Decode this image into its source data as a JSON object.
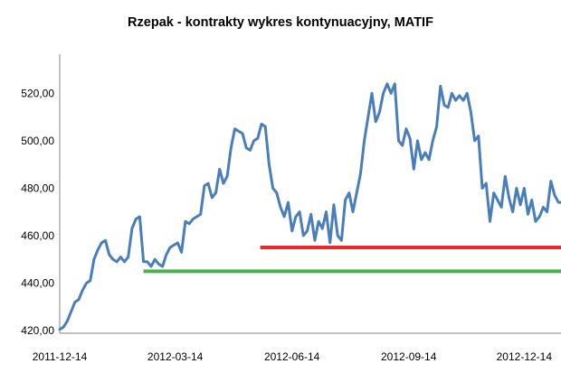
{
  "chart_data": {
    "type": "line",
    "title": "Rzepak - kontrakty wykres kontynuacyjny, MATIF",
    "xlabel": "",
    "ylabel": "",
    "ylim": [
      420,
      530
    ],
    "yticks": [
      420,
      440,
      460,
      480,
      500,
      520
    ],
    "ytick_labels": [
      "420,00",
      "440,00",
      "460,00",
      "480,00",
      "500,00",
      "520,00"
    ],
    "x_range": [
      "2011-12-14",
      "2013-01-12"
    ],
    "xtick_values": [
      "2011-12-14",
      "2012-03-14",
      "2012-06-14",
      "2012-09-14",
      "2012-12-14"
    ],
    "xtick_labels": [
      "2011-12-14",
      "2012-03-14",
      "2012-06-14",
      "2012-09-14",
      "2012-12-14"
    ],
    "grid": {
      "horizontal": false,
      "vertical": false
    },
    "series_color": "#4a7ebb",
    "series": [
      {
        "name": "",
        "points": [
          [
            "2011-12-14",
            420.5
          ],
          [
            "2011-12-17",
            421.5
          ],
          [
            "2011-12-20",
            424
          ],
          [
            "2011-12-23",
            428
          ],
          [
            "2011-12-26",
            432
          ],
          [
            "2011-12-29",
            433
          ],
          [
            "2012-01-01",
            437
          ],
          [
            "2012-01-04",
            440
          ],
          [
            "2012-01-07",
            441
          ],
          [
            "2012-01-10",
            450
          ],
          [
            "2012-01-13",
            454
          ],
          [
            "2012-01-16",
            457
          ],
          [
            "2012-01-19",
            458
          ],
          [
            "2012-01-22",
            452
          ],
          [
            "2012-01-25",
            450
          ],
          [
            "2012-01-28",
            449
          ],
          [
            "2012-01-31",
            451
          ],
          [
            "2012-02-03",
            449
          ],
          [
            "2012-02-06",
            451
          ],
          [
            "2012-02-09",
            463
          ],
          [
            "2012-02-12",
            467
          ],
          [
            "2012-02-15",
            468
          ],
          [
            "2012-02-18",
            449
          ],
          [
            "2012-02-21",
            449
          ],
          [
            "2012-02-24",
            447
          ],
          [
            "2012-02-27",
            450
          ],
          [
            "2012-03-01",
            448
          ],
          [
            "2012-03-04",
            447
          ],
          [
            "2012-03-07",
            452
          ],
          [
            "2012-03-10",
            455
          ],
          [
            "2012-03-13",
            456
          ],
          [
            "2012-03-16",
            457
          ],
          [
            "2012-03-19",
            453
          ],
          [
            "2012-03-22",
            466
          ],
          [
            "2012-03-25",
            465
          ],
          [
            "2012-03-28",
            467
          ],
          [
            "2012-03-31",
            468
          ],
          [
            "2012-04-03",
            469
          ],
          [
            "2012-04-06",
            481
          ],
          [
            "2012-04-09",
            482
          ],
          [
            "2012-04-12",
            476
          ],
          [
            "2012-04-15",
            478
          ],
          [
            "2012-04-18",
            488
          ],
          [
            "2012-04-21",
            482
          ],
          [
            "2012-04-24",
            485
          ],
          [
            "2012-04-27",
            497
          ],
          [
            "2012-04-30",
            505
          ],
          [
            "2012-05-03",
            504
          ],
          [
            "2012-05-06",
            503
          ],
          [
            "2012-05-09",
            497
          ],
          [
            "2012-05-12",
            496
          ],
          [
            "2012-05-15",
            500
          ],
          [
            "2012-05-18",
            501
          ],
          [
            "2012-05-21",
            507
          ],
          [
            "2012-05-24",
            506
          ],
          [
            "2012-05-27",
            490
          ],
          [
            "2012-05-30",
            480
          ],
          [
            "2012-06-02",
            478
          ],
          [
            "2012-06-05",
            472
          ],
          [
            "2012-06-08",
            468
          ],
          [
            "2012-06-11",
            474
          ],
          [
            "2012-06-14",
            462
          ],
          [
            "2012-06-17",
            468
          ],
          [
            "2012-06-20",
            470
          ],
          [
            "2012-06-23",
            460
          ],
          [
            "2012-06-26",
            462
          ],
          [
            "2012-06-29",
            469
          ],
          [
            "2012-07-02",
            458
          ],
          [
            "2012-07-05",
            466
          ],
          [
            "2012-07-08",
            463
          ],
          [
            "2012-07-11",
            470
          ],
          [
            "2012-07-14",
            457
          ],
          [
            "2012-07-17",
            473
          ],
          [
            "2012-07-20",
            460
          ],
          [
            "2012-07-23",
            458
          ],
          [
            "2012-07-26",
            475
          ],
          [
            "2012-07-29",
            478
          ],
          [
            "2012-08-01",
            470
          ],
          [
            "2012-08-04",
            478
          ],
          [
            "2012-08-07",
            486
          ],
          [
            "2012-08-10",
            500
          ],
          [
            "2012-08-13",
            510
          ],
          [
            "2012-08-16",
            520
          ],
          [
            "2012-08-19",
            508
          ],
          [
            "2012-08-22",
            512
          ],
          [
            "2012-08-25",
            520
          ],
          [
            "2012-08-28",
            524
          ],
          [
            "2012-08-31",
            520
          ],
          [
            "2012-09-03",
            524
          ],
          [
            "2012-09-06",
            500
          ],
          [
            "2012-09-09",
            498
          ],
          [
            "2012-09-12",
            505
          ],
          [
            "2012-09-15",
            501
          ],
          [
            "2012-09-18",
            488
          ],
          [
            "2012-09-21",
            500
          ],
          [
            "2012-09-24",
            492
          ],
          [
            "2012-09-27",
            495
          ],
          [
            "2012-09-30",
            492
          ],
          [
            "2012-10-03",
            500
          ],
          [
            "2012-10-06",
            506
          ],
          [
            "2012-10-09",
            523
          ],
          [
            "2012-10-12",
            515
          ],
          [
            "2012-10-15",
            514
          ],
          [
            "2012-10-18",
            520
          ],
          [
            "2012-10-21",
            517
          ],
          [
            "2012-10-24",
            519
          ],
          [
            "2012-10-27",
            517
          ],
          [
            "2012-10-30",
            520
          ],
          [
            "2012-11-02",
            512
          ],
          [
            "2012-11-05",
            500
          ],
          [
            "2012-11-08",
            502
          ],
          [
            "2012-11-11",
            480
          ],
          [
            "2012-11-14",
            482
          ],
          [
            "2012-11-17",
            466
          ],
          [
            "2012-11-20",
            478
          ],
          [
            "2012-11-23",
            475
          ],
          [
            "2012-11-26",
            472
          ],
          [
            "2012-11-29",
            485
          ],
          [
            "2012-12-02",
            476
          ],
          [
            "2012-12-05",
            470
          ],
          [
            "2012-12-08",
            480
          ],
          [
            "2012-12-11",
            473
          ],
          [
            "2012-12-14",
            480
          ],
          [
            "2012-12-17",
            469
          ],
          [
            "2012-12-20",
            475
          ],
          [
            "2012-12-23",
            466
          ],
          [
            "2012-12-26",
            468
          ],
          [
            "2012-12-29",
            472
          ],
          [
            "2013-01-01",
            470
          ],
          [
            "2013-01-04",
            483
          ],
          [
            "2013-01-07",
            477
          ],
          [
            "2013-01-10",
            474
          ],
          [
            "2013-01-12",
            474
          ]
        ]
      }
    ],
    "reference_lines": [
      {
        "color": "#e8292e",
        "y": 455,
        "x_start": "2012-05-20",
        "x_end": "2013-01-12"
      },
      {
        "color": "#4caf50",
        "y": 445,
        "x_start": "2012-02-18",
        "x_end": "2013-01-12"
      }
    ]
  }
}
